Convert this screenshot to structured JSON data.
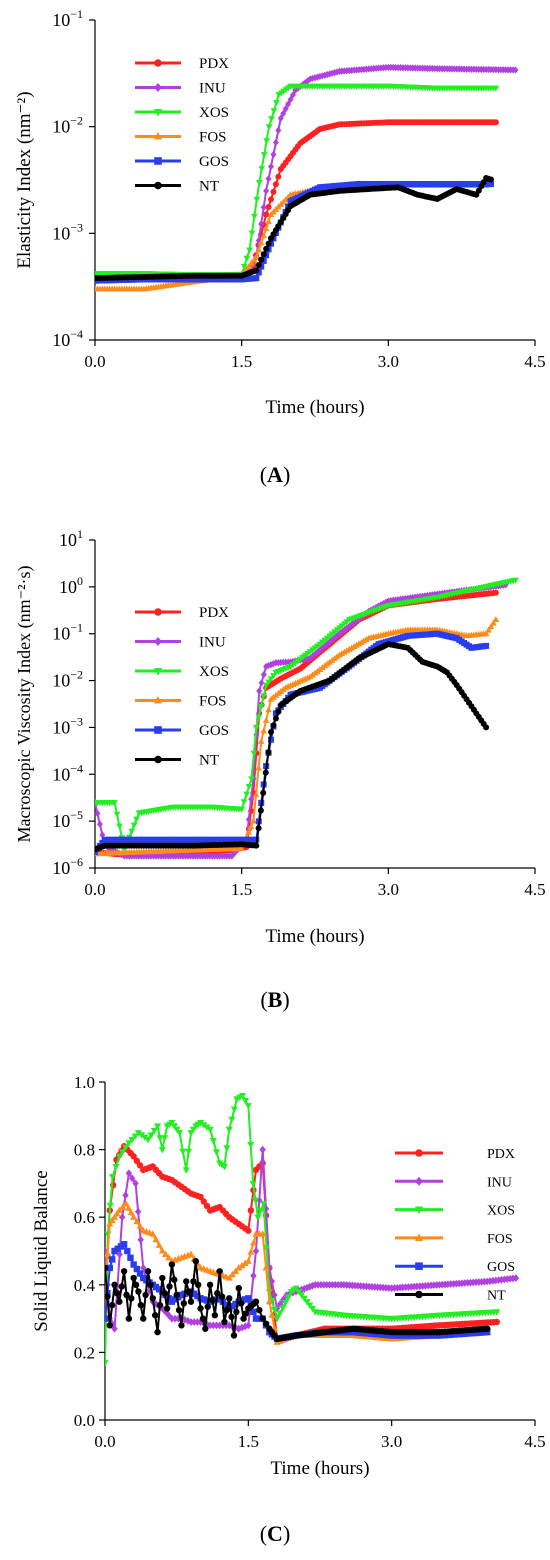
{
  "figure": {
    "panel_labels": [
      {
        "open": "(",
        "letter": "A",
        "close": ")"
      },
      {
        "open": "(",
        "letter": "B",
        "close": ")"
      },
      {
        "open": "(",
        "letter": "C",
        "close": ")"
      }
    ]
  },
  "chart_data": [
    {
      "type": "line",
      "panel": "A",
      "xlabel": "Time (hours)",
      "ylabel": "Elasticity Index (nm⁻²)",
      "yscale": "log",
      "xlim": [
        0,
        4.5
      ],
      "ylim": [
        0.0001,
        0.1
      ],
      "xticks": [
        0,
        1.5,
        3.0,
        4.5
      ],
      "xtick_labels": [
        "0.0",
        "1.5",
        "3.0",
        "4.5"
      ],
      "ytick_exponents": [
        -4,
        -3,
        -2,
        -1
      ],
      "ytick_base": "10",
      "legend_position": "top-left",
      "series": [
        {
          "name": "PDX",
          "color": "#ff2020",
          "marker": "circle",
          "x": [
            0,
            0.5,
            1.0,
            1.5,
            1.62,
            1.75,
            1.9,
            2.1,
            2.3,
            2.5,
            3.0,
            3.5,
            4.1
          ],
          "y": [
            0.00037,
            0.0004,
            0.0004,
            0.00041,
            0.0005,
            0.0015,
            0.004,
            0.007,
            0.0095,
            0.0105,
            0.011,
            0.011,
            0.011
          ]
        },
        {
          "name": "INU",
          "color": "#b040e0",
          "marker": "diamond",
          "x": [
            0,
            0.5,
            1.0,
            1.55,
            1.65,
            1.75,
            1.9,
            2.05,
            2.2,
            2.5,
            3.0,
            3.5,
            4.3
          ],
          "y": [
            0.0004,
            0.0004,
            0.0004,
            0.0004,
            0.0006,
            0.0025,
            0.012,
            0.022,
            0.028,
            0.033,
            0.036,
            0.035,
            0.034
          ]
        },
        {
          "name": "XOS",
          "color": "#22ee22",
          "marker": "triangle-down",
          "x": [
            0,
            0.5,
            1.0,
            1.5,
            1.58,
            1.68,
            1.78,
            1.88,
            2.0,
            2.5,
            3.0,
            3.5,
            4.1
          ],
          "y": [
            0.00042,
            0.00042,
            0.00041,
            0.00041,
            0.0007,
            0.003,
            0.01,
            0.02,
            0.024,
            0.024,
            0.024,
            0.023,
            0.023
          ]
        },
        {
          "name": "FOS",
          "color": "#ff8c1a",
          "marker": "triangle-up",
          "x": [
            0,
            0.5,
            1.0,
            1.5,
            1.65,
            1.8,
            2.0,
            2.3,
            2.7,
            3.0,
            3.5,
            4.0
          ],
          "y": [
            0.0003,
            0.0003,
            0.00035,
            0.0004,
            0.0006,
            0.0015,
            0.0023,
            0.0026,
            0.0027,
            0.0028,
            0.0028,
            0.0028
          ]
        },
        {
          "name": "GOS",
          "color": "#2a3cf0",
          "marker": "square",
          "x": [
            0,
            0.5,
            1.0,
            1.5,
            1.65,
            1.8,
            2.0,
            2.3,
            2.7,
            3.0,
            3.5,
            4.05
          ],
          "y": [
            0.00036,
            0.00037,
            0.00037,
            0.00037,
            0.00038,
            0.0008,
            0.002,
            0.0027,
            0.0029,
            0.0029,
            0.0029,
            0.0029
          ]
        },
        {
          "name": "NT",
          "color": "#000000",
          "marker": "circle",
          "x": [
            0,
            0.5,
            1.0,
            1.5,
            1.65,
            1.8,
            2.0,
            2.2,
            2.5,
            2.8,
            3.1,
            3.3,
            3.5,
            3.7,
            3.9,
            4.0,
            4.05
          ],
          "y": [
            0.00038,
            0.00039,
            0.0004,
            0.0004,
            0.00045,
            0.0009,
            0.0018,
            0.0023,
            0.0025,
            0.0026,
            0.0027,
            0.0023,
            0.0021,
            0.0026,
            0.0023,
            0.0033,
            0.0032
          ]
        }
      ]
    },
    {
      "type": "line",
      "panel": "B",
      "xlabel": "Time (hours)",
      "ylabel": "Macroscopic Viscosity Index (nm⁻²·s)",
      "yscale": "log",
      "xlim": [
        0,
        4.5
      ],
      "ylim": [
        1e-06,
        10
      ],
      "xticks": [
        0,
        1.5,
        3.0,
        4.5
      ],
      "xtick_labels": [
        "0.0",
        "1.5",
        "3.0",
        "4.5"
      ],
      "ytick_exponents": [
        -6,
        -5,
        -4,
        -3,
        -2,
        -1,
        0,
        1
      ],
      "ytick_base": "10",
      "legend_position": "left",
      "series": [
        {
          "name": "PDX",
          "color": "#ff2020",
          "marker": "circle",
          "x": [
            0,
            0.3,
            0.6,
            1.0,
            1.4,
            1.55,
            1.62,
            1.68,
            1.75,
            1.9,
            2.1,
            2.4,
            2.7,
            3.0,
            3.5,
            4.1
          ],
          "y": [
            2.2e-06,
            1.9e-06,
            2e-06,
            2.1e-06,
            2.4e-06,
            2.8e-06,
            4e-05,
            0.002,
            0.007,
            0.011,
            0.018,
            0.06,
            0.2,
            0.4,
            0.55,
            0.75
          ]
        },
        {
          "name": "INU",
          "color": "#b040e0",
          "marker": "diamond",
          "x": [
            0,
            0.1,
            0.3,
            0.6,
            1.0,
            1.4,
            1.55,
            1.62,
            1.68,
            1.75,
            1.85,
            2.0,
            2.2,
            2.5,
            2.8,
            3.0,
            3.5,
            4.2
          ],
          "y": [
            2.5e-05,
            3e-06,
            1.8e-06,
            1.8e-06,
            1.8e-06,
            1.8e-06,
            4e-06,
            8e-05,
            0.006,
            0.02,
            0.024,
            0.025,
            0.03,
            0.1,
            0.3,
            0.5,
            0.7,
            1.1
          ]
        },
        {
          "name": "XOS",
          "color": "#22ee22",
          "marker": "triangle-down",
          "x": [
            0,
            0.2,
            0.3,
            0.45,
            0.8,
            1.2,
            1.5,
            1.6,
            1.65,
            1.75,
            1.85,
            2.0,
            2.3,
            2.6,
            3.0,
            3.5,
            4.3
          ],
          "y": [
            2.5e-05,
            2.5e-05,
            2.5e-06,
            1.5e-05,
            2e-05,
            2e-05,
            1.8e-05,
            8e-05,
            0.001,
            0.008,
            0.015,
            0.02,
            0.06,
            0.2,
            0.4,
            0.6,
            1.4
          ]
        },
        {
          "name": "FOS",
          "color": "#ff8c1a",
          "marker": "triangle-up",
          "x": [
            0,
            0.5,
            1.0,
            1.5,
            1.62,
            1.7,
            1.8,
            1.95,
            2.2,
            2.5,
            2.8,
            3.0,
            3.2,
            3.5,
            3.8,
            4.0,
            4.1
          ],
          "y": [
            2e-06,
            2.2e-06,
            2.4e-06,
            2.6e-06,
            1e-05,
            0.0005,
            0.004,
            0.007,
            0.012,
            0.035,
            0.08,
            0.1,
            0.12,
            0.12,
            0.09,
            0.1,
            0.2
          ]
        },
        {
          "name": "GOS",
          "color": "#2a3cf0",
          "marker": "square",
          "x": [
            0,
            0.1,
            0.5,
            1.0,
            1.5,
            1.65,
            1.75,
            1.85,
            2.0,
            2.3,
            2.6,
            2.9,
            3.2,
            3.5,
            3.7,
            3.85,
            4.0
          ],
          "y": [
            2.2e-06,
            4e-06,
            4e-06,
            4e-06,
            4e-06,
            4e-06,
            0.00015,
            0.002,
            0.005,
            0.007,
            0.02,
            0.06,
            0.09,
            0.1,
            0.08,
            0.05,
            0.055
          ]
        },
        {
          "name": "NT",
          "color": "#000000",
          "marker": "circle",
          "x": [
            0,
            0.1,
            0.5,
            1.0,
            1.5,
            1.65,
            1.72,
            1.8,
            1.9,
            2.1,
            2.4,
            2.7,
            3.0,
            3.2,
            3.35,
            3.5,
            3.6,
            3.7,
            3.8,
            3.9,
            4.0
          ],
          "y": [
            2.5e-06,
            3e-06,
            3e-06,
            3e-06,
            3.2e-06,
            3e-06,
            4e-05,
            0.0008,
            0.003,
            0.006,
            0.01,
            0.03,
            0.06,
            0.05,
            0.025,
            0.02,
            0.015,
            0.008,
            0.004,
            0.002,
            0.001
          ]
        }
      ]
    },
    {
      "type": "line",
      "panel": "C",
      "xlabel": "Time (hours)",
      "ylabel": "Solid Liquid Balance",
      "yscale": "linear",
      "xlim": [
        0,
        4.5
      ],
      "ylim": [
        0,
        1.0
      ],
      "xticks": [
        0,
        1.5,
        3.0,
        4.5
      ],
      "xtick_labels": [
        "0.0",
        "1.5",
        "3.0",
        "4.5"
      ],
      "yticks": [
        0,
        0.2,
        0.4,
        0.6,
        0.8,
        1.0
      ],
      "ytick_labels": [
        "0.0",
        "0.2",
        "0.4",
        "0.6",
        "0.8",
        "1.0"
      ],
      "legend_position": "right",
      "series": [
        {
          "name": "PDX",
          "color": "#ff2020",
          "marker": "circle",
          "x": [
            0.0,
            0.05,
            0.12,
            0.2,
            0.3,
            0.4,
            0.5,
            0.6,
            0.7,
            0.8,
            0.9,
            1.0,
            1.1,
            1.2,
            1.3,
            1.4,
            1.5,
            1.58,
            1.65,
            1.72,
            1.8,
            2.0,
            2.3,
            2.6,
            3.0,
            3.5,
            4.1
          ],
          "y": [
            0.35,
            0.62,
            0.77,
            0.81,
            0.78,
            0.74,
            0.75,
            0.72,
            0.71,
            0.69,
            0.67,
            0.66,
            0.62,
            0.63,
            0.6,
            0.58,
            0.56,
            0.74,
            0.76,
            0.45,
            0.24,
            0.25,
            0.27,
            0.27,
            0.27,
            0.28,
            0.29
          ]
        },
        {
          "name": "INU",
          "color": "#b040e0",
          "marker": "diamond",
          "x": [
            0.0,
            0.05,
            0.1,
            0.18,
            0.25,
            0.32,
            0.4,
            0.5,
            0.6,
            0.7,
            0.8,
            0.9,
            1.0,
            1.1,
            1.2,
            1.3,
            1.4,
            1.5,
            1.58,
            1.65,
            1.72,
            1.8,
            1.9,
            2.0,
            2.2,
            2.5,
            3.0,
            3.5,
            4.0,
            4.3
          ],
          "y": [
            0.5,
            0.3,
            0.27,
            0.6,
            0.73,
            0.7,
            0.45,
            0.35,
            0.33,
            0.3,
            0.3,
            0.29,
            0.29,
            0.28,
            0.28,
            0.28,
            0.27,
            0.28,
            0.5,
            0.8,
            0.45,
            0.33,
            0.37,
            0.38,
            0.4,
            0.4,
            0.39,
            0.4,
            0.41,
            0.42
          ]
        },
        {
          "name": "XOS",
          "color": "#22ee22",
          "marker": "triangle-down",
          "x": [
            0.0,
            0.03,
            0.08,
            0.15,
            0.25,
            0.35,
            0.45,
            0.55,
            0.6,
            0.65,
            0.7,
            0.78,
            0.85,
            0.9,
            0.95,
            1.0,
            1.1,
            1.2,
            1.25,
            1.3,
            1.38,
            1.44,
            1.5,
            1.55,
            1.6,
            1.66,
            1.72,
            1.8,
            1.95,
            2.0,
            2.2,
            2.5,
            3.0,
            3.5,
            4.1
          ],
          "y": [
            0.17,
            0.55,
            0.72,
            0.78,
            0.82,
            0.85,
            0.83,
            0.87,
            0.8,
            0.87,
            0.88,
            0.85,
            0.74,
            0.85,
            0.87,
            0.88,
            0.86,
            0.76,
            0.75,
            0.86,
            0.95,
            0.96,
            0.93,
            0.7,
            0.6,
            0.64,
            0.38,
            0.3,
            0.38,
            0.39,
            0.32,
            0.31,
            0.3,
            0.31,
            0.32
          ]
        },
        {
          "name": "FOS",
          "color": "#ff8c1a",
          "marker": "triangle-up",
          "x": [
            0.0,
            0.05,
            0.1,
            0.15,
            0.22,
            0.3,
            0.4,
            0.5,
            0.6,
            0.7,
            0.8,
            0.9,
            1.0,
            1.1,
            1.2,
            1.3,
            1.4,
            1.5,
            1.58,
            1.65,
            1.72,
            1.8,
            2.0,
            2.3,
            2.6,
            3.0,
            3.5,
            4.0
          ],
          "y": [
            0.4,
            0.58,
            0.6,
            0.62,
            0.64,
            0.6,
            0.56,
            0.55,
            0.5,
            0.47,
            0.48,
            0.49,
            0.45,
            0.44,
            0.43,
            0.42,
            0.45,
            0.47,
            0.55,
            0.55,
            0.35,
            0.23,
            0.25,
            0.25,
            0.25,
            0.24,
            0.25,
            0.26
          ]
        },
        {
          "name": "GOS",
          "color": "#2a3cf0",
          "marker": "square",
          "x": [
            0.0,
            0.05,
            0.1,
            0.2,
            0.3,
            0.4,
            0.5,
            0.6,
            0.7,
            0.8,
            0.9,
            1.0,
            1.1,
            1.2,
            1.3,
            1.4,
            1.5,
            1.58,
            1.65,
            1.72,
            1.8,
            2.0,
            2.3,
            2.6,
            3.0,
            3.5,
            4.0
          ],
          "y": [
            0.3,
            0.45,
            0.5,
            0.52,
            0.46,
            0.42,
            0.4,
            0.38,
            0.35,
            0.37,
            0.38,
            0.36,
            0.35,
            0.36,
            0.33,
            0.35,
            0.36,
            0.3,
            0.3,
            0.26,
            0.24,
            0.25,
            0.26,
            0.26,
            0.25,
            0.25,
            0.26
          ]
        },
        {
          "name": "NT",
          "color": "#000000",
          "marker": "circle",
          "x": [
            0.0,
            0.05,
            0.1,
            0.15,
            0.2,
            0.25,
            0.3,
            0.35,
            0.4,
            0.45,
            0.5,
            0.55,
            0.6,
            0.65,
            0.7,
            0.75,
            0.8,
            0.85,
            0.9,
            0.95,
            1.0,
            1.05,
            1.1,
            1.15,
            1.2,
            1.25,
            1.3,
            1.35,
            1.4,
            1.45,
            1.5,
            1.58,
            1.65,
            1.72,
            1.8,
            2.0,
            2.3,
            2.6,
            3.0,
            3.5,
            4.0
          ],
          "y": [
            0.45,
            0.28,
            0.4,
            0.35,
            0.44,
            0.3,
            0.42,
            0.38,
            0.3,
            0.44,
            0.36,
            0.26,
            0.42,
            0.33,
            0.46,
            0.37,
            0.28,
            0.41,
            0.35,
            0.47,
            0.33,
            0.27,
            0.4,
            0.31,
            0.44,
            0.29,
            0.36,
            0.25,
            0.39,
            0.3,
            0.33,
            0.35,
            0.3,
            0.27,
            0.24,
            0.25,
            0.26,
            0.27,
            0.26,
            0.26,
            0.27
          ]
        }
      ]
    }
  ]
}
